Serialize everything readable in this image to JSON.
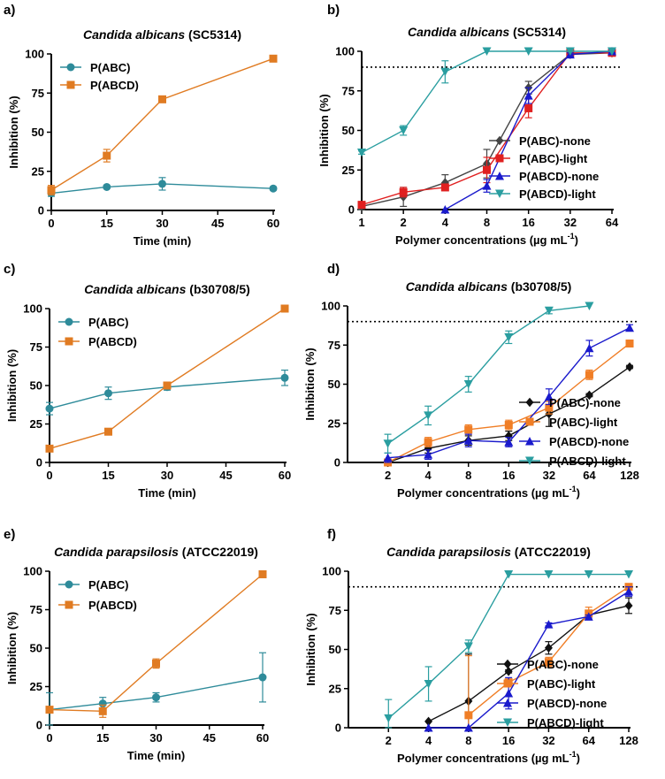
{
  "chart_data": [
    {
      "id": "a",
      "panel_label": "a)",
      "type": "line",
      "title_species": "Candida albicans",
      "title_strain": " (SC5314)",
      "xlabel": "Time (min)",
      "ylabel": "Inhibition (%)",
      "xscale": "linear",
      "xlim": [
        0,
        60
      ],
      "ylim": [
        0,
        100
      ],
      "xticks": [
        "0",
        "15",
        "30",
        "45",
        "60"
      ],
      "yticks": [
        "0",
        "25",
        "50",
        "75",
        "100"
      ],
      "legend_position": "top-left",
      "threshold": null,
      "series": [
        {
          "name": "P(ABC)",
          "color": "#2e8b9a",
          "marker": "circle",
          "x": [
            0,
            15,
            30,
            60
          ],
          "y": [
            11,
            15,
            17,
            14
          ],
          "err": [
            2,
            1,
            4,
            1
          ]
        },
        {
          "name": "P(ABCD)",
          "color": "#e07b22",
          "marker": "square",
          "x": [
            0,
            15,
            30,
            60
          ],
          "y": [
            13,
            35,
            71,
            97
          ],
          "err": [
            3,
            4,
            1,
            0
          ]
        }
      ]
    },
    {
      "id": "b",
      "panel_label": "b)",
      "type": "line",
      "title_species": "Candida albicans",
      "title_strain": " (SC5314)",
      "xlabel": "Polymer concentrations (µg mL",
      "xlabel_sup": "-1",
      "xlabel_end": ")",
      "ylabel": "Inhibition (%)",
      "xscale": "log2",
      "xlim": [
        1,
        64
      ],
      "ylim": [
        0,
        100
      ],
      "xticks": [
        "1",
        "2",
        "4",
        "8",
        "16",
        "32",
        "64"
      ],
      "yticks": [
        "0",
        "25",
        "50",
        "75",
        "100"
      ],
      "legend_position": "bottom-right",
      "threshold": 90,
      "series": [
        {
          "name": "P(ABC)-none",
          "color": "#444444",
          "marker": "diamond",
          "x": [
            1,
            2,
            4,
            8,
            16,
            32,
            64
          ],
          "y": [
            2,
            8,
            17,
            29,
            77,
            98,
            99
          ],
          "err": [
            2,
            6,
            5,
            9,
            4,
            1,
            1
          ]
        },
        {
          "name": "P(ABC)-light",
          "color": "#e02020",
          "marker": "square",
          "x": [
            1,
            2,
            4,
            8,
            16,
            32,
            64
          ],
          "y": [
            3,
            11,
            14,
            25,
            64,
            99,
            99
          ],
          "err": [
            2,
            3,
            2,
            8,
            6,
            1,
            1
          ]
        },
        {
          "name": "P(ABCD)-none",
          "color": "#1a1acc",
          "marker": "triangle-up",
          "x": [
            4,
            8,
            16,
            32,
            64
          ],
          "y": [
            0,
            15,
            72,
            98,
            100
          ],
          "err": [
            0,
            4,
            5,
            1,
            1
          ]
        },
        {
          "name": "P(ABCD)-light",
          "color": "#2a9ea0",
          "marker": "triangle-down",
          "x": [
            1,
            2,
            4,
            8,
            16,
            32,
            64
          ],
          "y": [
            36,
            50,
            87,
            100,
            100,
            100,
            100
          ],
          "err": [
            1,
            3,
            7,
            0,
            0,
            0,
            0
          ]
        }
      ]
    },
    {
      "id": "c",
      "panel_label": "c)",
      "type": "line",
      "title_species": "Candida albicans",
      "title_strain": " (b30708/5)",
      "xlabel": "Time (min)",
      "ylabel": "Inhibition (%)",
      "xscale": "linear",
      "xlim": [
        0,
        60
      ],
      "ylim": [
        0,
        100
      ],
      "xticks": [
        "0",
        "15",
        "30",
        "45",
        "60"
      ],
      "yticks": [
        "0",
        "25",
        "50",
        "75",
        "100"
      ],
      "legend_position": "top-left",
      "threshold": null,
      "series": [
        {
          "name": "P(ABC)",
          "color": "#2e8b9a",
          "marker": "circle",
          "x": [
            0,
            15,
            30,
            60
          ],
          "y": [
            35,
            45,
            49,
            55
          ],
          "err": [
            4,
            4,
            2,
            5
          ]
        },
        {
          "name": "P(ABCD)",
          "color": "#e07b22",
          "marker": "square",
          "x": [
            0,
            15,
            30,
            60
          ],
          "y": [
            9,
            20,
            50,
            100
          ],
          "err": [
            1,
            2,
            2,
            0
          ]
        }
      ]
    },
    {
      "id": "d",
      "panel_label": "d)",
      "type": "line",
      "title_species": "Candida albicans",
      "title_strain": " (b30708/5)",
      "xlabel": "Polymer concentrations (µg mL",
      "xlabel_sup": "-1",
      "xlabel_end": ")",
      "ylabel": "Inhibition (%)",
      "xscale": "log2",
      "xlim": [
        1,
        128
      ],
      "ylim": [
        0,
        100
      ],
      "xticks": [
        "2",
        "4",
        "8",
        "16",
        "32",
        "64",
        "128"
      ],
      "yticks": [
        "0",
        "25",
        "50",
        "75",
        "100"
      ],
      "legend_position": "bottom-right",
      "threshold": 90,
      "series": [
        {
          "name": "P(ABC)-none",
          "color": "#111111",
          "marker": "diamond",
          "x": [
            2,
            4,
            8,
            16,
            32,
            64,
            128
          ],
          "y": [
            0,
            9,
            14,
            17,
            31,
            43,
            61
          ],
          "err": [
            0,
            3,
            3,
            3,
            8,
            1,
            1
          ]
        },
        {
          "name": "P(ABC)-light",
          "color": "#f07e26",
          "marker": "square",
          "x": [
            2,
            4,
            8,
            16,
            32,
            64,
            128
          ],
          "y": [
            0,
            13,
            21,
            24,
            35,
            56,
            76
          ],
          "err": [
            0,
            3,
            3,
            3,
            4,
            3,
            2
          ]
        },
        {
          "name": "P(ABCD)-none",
          "color": "#1a1acc",
          "marker": "triangle-up",
          "x": [
            2,
            4,
            8,
            16,
            32,
            64,
            128
          ],
          "y": [
            3,
            5,
            14,
            13,
            42,
            73,
            86
          ],
          "err": [
            3,
            3,
            4,
            3,
            5,
            5,
            2
          ]
        },
        {
          "name": "P(ABCD)-light",
          "color": "#2a9ea0",
          "marker": "triangle-down",
          "x": [
            2,
            4,
            8,
            16,
            32,
            64
          ],
          "y": [
            12,
            30,
            50,
            80,
            97,
            100
          ],
          "err": [
            6,
            6,
            5,
            4,
            2,
            0
          ]
        }
      ]
    },
    {
      "id": "e",
      "panel_label": "e)",
      "type": "line",
      "title_species": "Candida parapsilosis",
      "title_strain": " (ATCC22019)",
      "xlabel": "Time (min)",
      "ylabel": "Inhibition (%)",
      "xscale": "linear",
      "xlim": [
        0,
        60
      ],
      "ylim": [
        0,
        100
      ],
      "xticks": [
        "0",
        "15",
        "30",
        "45",
        "60"
      ],
      "yticks": [
        "0",
        "25",
        "50",
        "75",
        "100"
      ],
      "legend_position": "top-left",
      "threshold": null,
      "series": [
        {
          "name": "P(ABC)",
          "color": "#2e8b9a",
          "marker": "circle",
          "x": [
            0,
            15,
            30,
            60
          ],
          "y": [
            10,
            14,
            18,
            31
          ],
          "err": [
            11,
            4,
            3,
            16
          ]
        },
        {
          "name": "P(ABCD)",
          "color": "#e07b22",
          "marker": "square",
          "x": [
            0,
            15,
            30,
            60
          ],
          "y": [
            10,
            9,
            40,
            98
          ],
          "err": [
            1,
            4,
            3,
            0
          ]
        }
      ]
    },
    {
      "id": "f",
      "panel_label": "f)",
      "type": "line",
      "title_species": "Candida parapsilosis",
      "title_strain": " (ATCC22019)",
      "xlabel": "Polymer concentrations (µg mL",
      "xlabel_sup": "-1",
      "xlabel_end": ")",
      "ylabel": "Inhibition (%)",
      "xscale": "log2",
      "xlim": [
        1,
        128
      ],
      "ylim": [
        0,
        100
      ],
      "xticks": [
        "2",
        "4",
        "8",
        "16",
        "32",
        "64",
        "128"
      ],
      "yticks": [
        "0",
        "25",
        "50",
        "75",
        "100"
      ],
      "legend_position": "bottom-right",
      "threshold": 90,
      "series": [
        {
          "name": "P(ABC)-none",
          "color": "#111111",
          "marker": "diamond",
          "x": [
            4,
            8,
            16,
            32,
            64,
            128
          ],
          "y": [
            4,
            17,
            36,
            51,
            72,
            78
          ],
          "err": [
            0,
            30,
            1,
            4,
            3,
            5
          ]
        },
        {
          "name": "P(ABC)-light",
          "color": "#f07e26",
          "marker": "square",
          "x": [
            8,
            16,
            32,
            64,
            128
          ],
          "y": [
            8,
            29,
            42,
            73,
            90
          ],
          "err": [
            38,
            2,
            3,
            4,
            2
          ]
        },
        {
          "name": "P(ABCD)-none",
          "color": "#1a1acc",
          "marker": "triangle-up",
          "x": [
            4,
            8,
            16,
            32,
            64,
            128
          ],
          "y": [
            0,
            0,
            22,
            66,
            71,
            87
          ],
          "err": [
            0,
            0,
            10,
            1,
            1,
            3
          ]
        },
        {
          "name": "P(ABCD)-light",
          "color": "#2a9ea0",
          "marker": "triangle-down",
          "x": [
            2,
            4,
            8,
            16,
            32,
            64,
            128
          ],
          "y": [
            6,
            28,
            52,
            98,
            98,
            98,
            98
          ],
          "err": [
            12,
            11,
            4,
            0,
            0,
            0,
            0
          ]
        }
      ]
    }
  ]
}
